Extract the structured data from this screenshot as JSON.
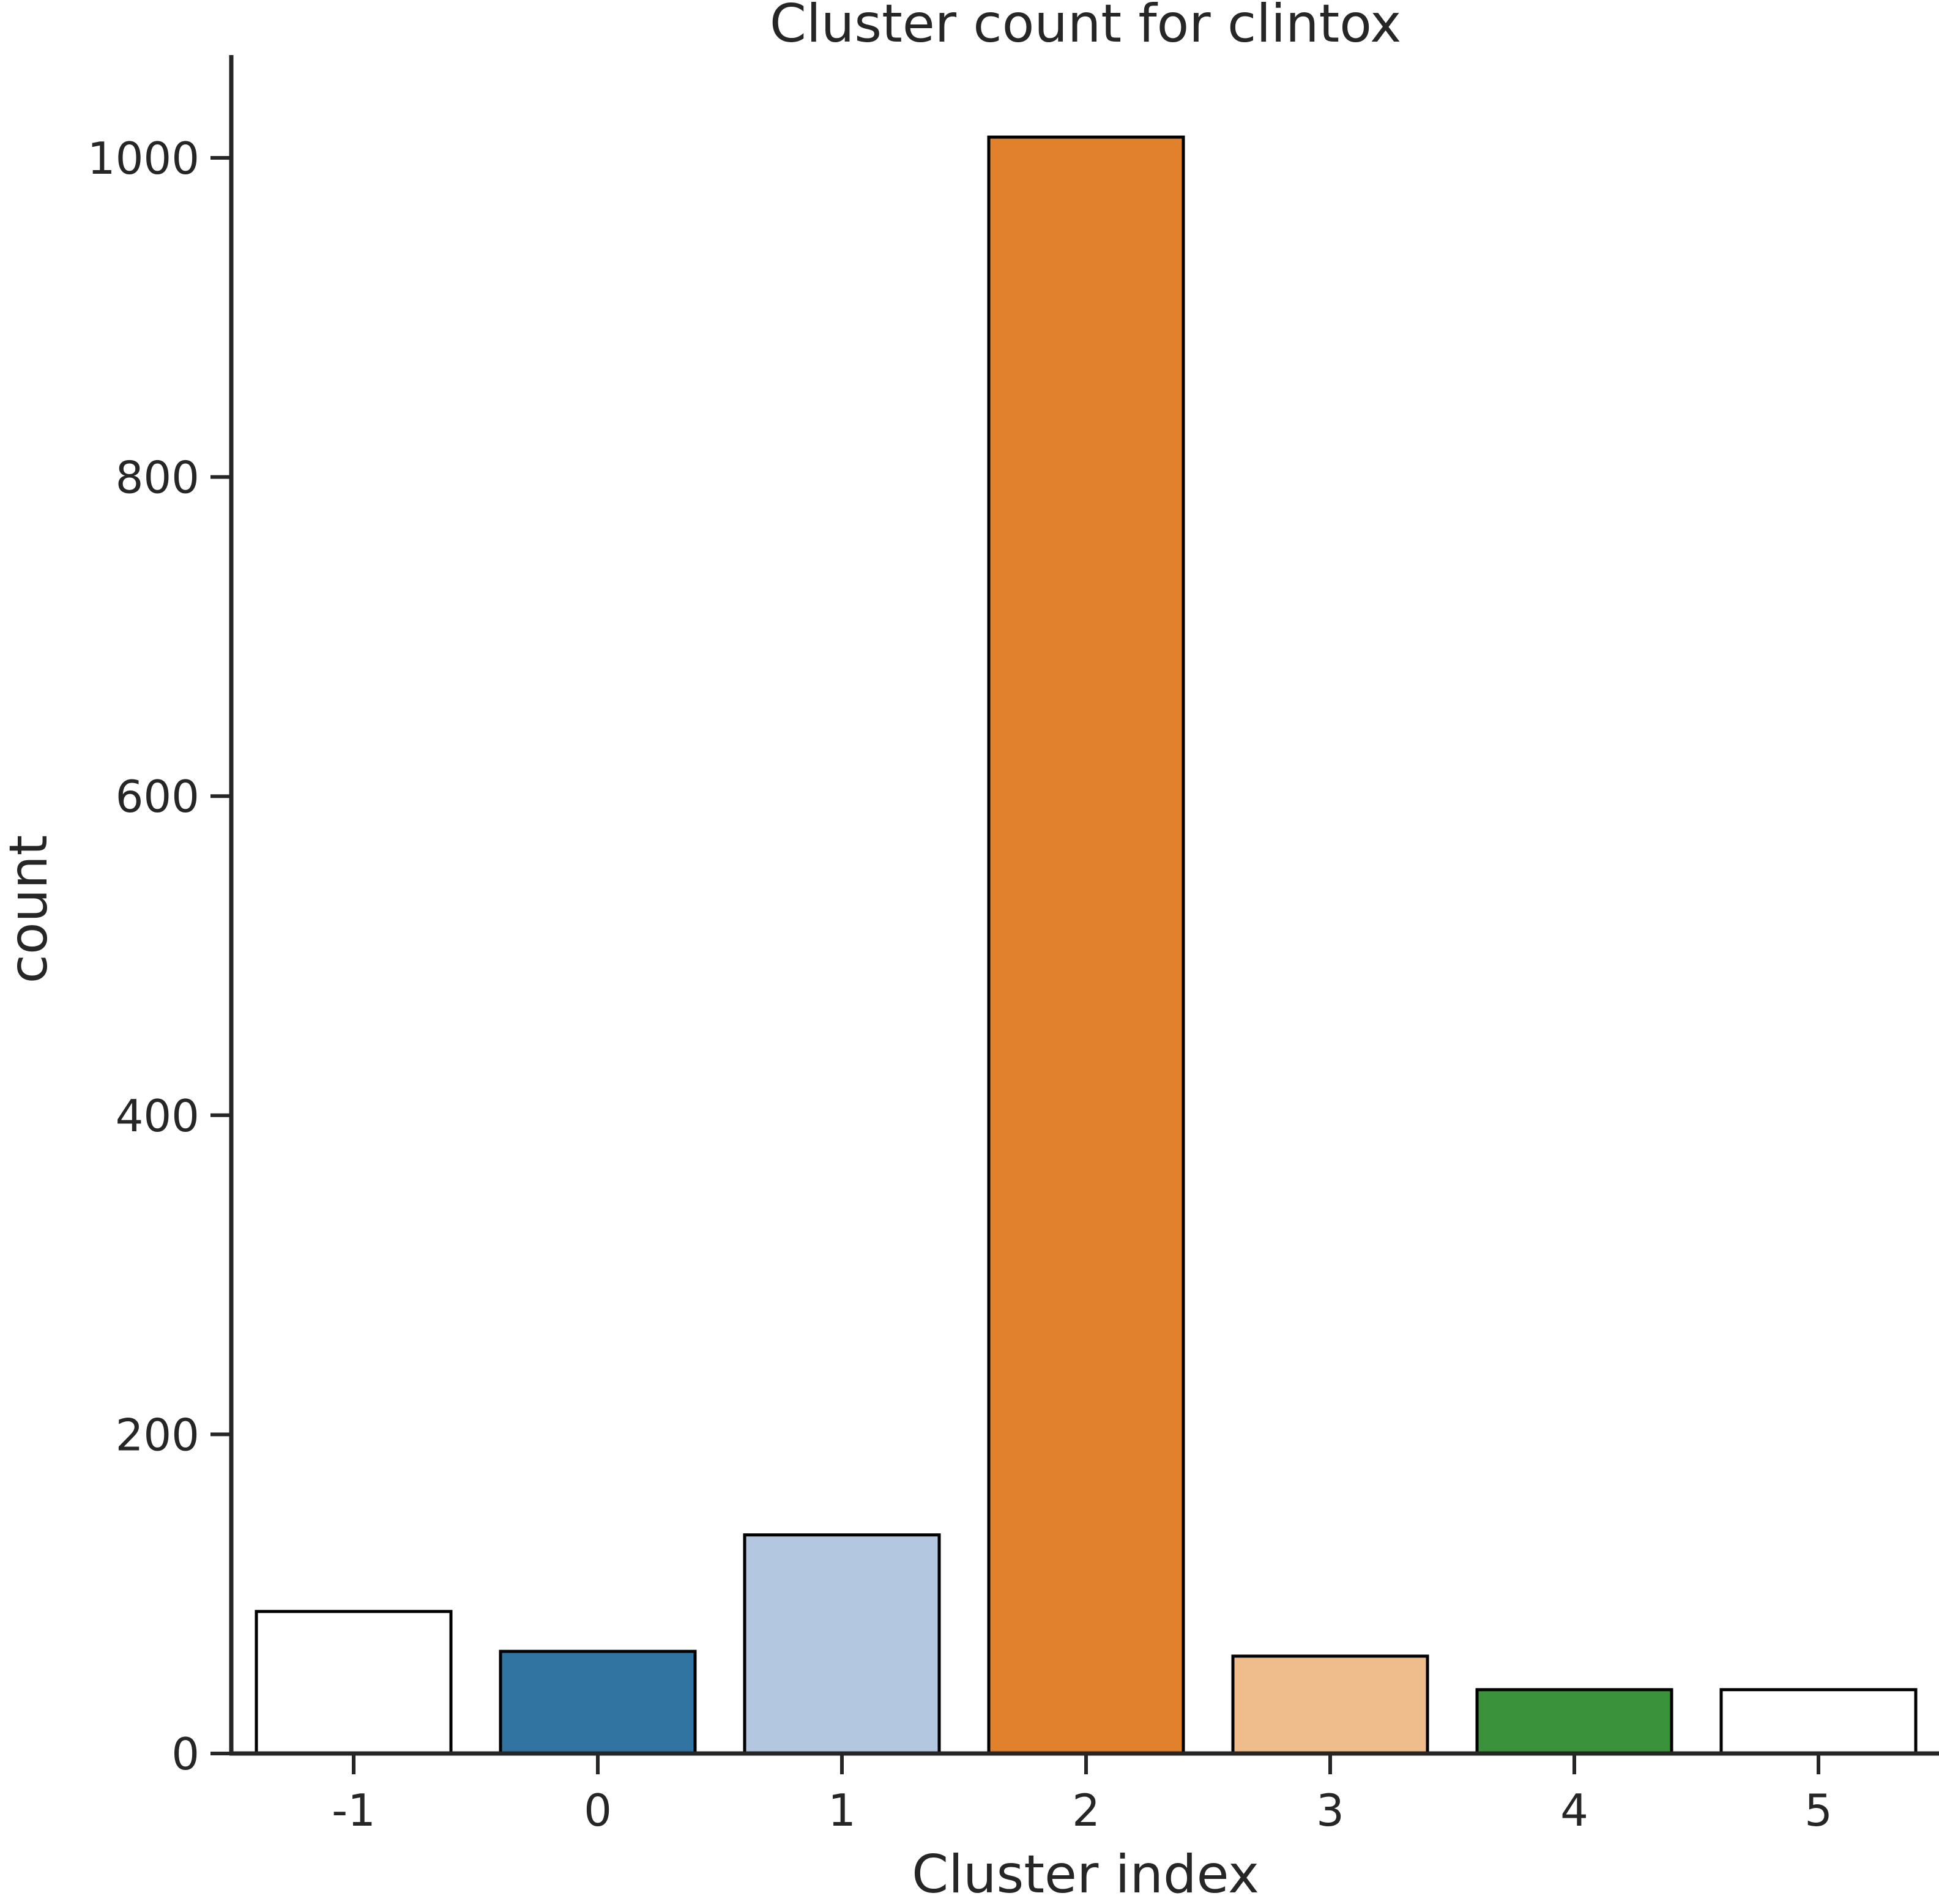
{
  "chart_data": {
    "type": "bar",
    "title": "Cluster count for clintox",
    "xlabel": "Cluster index",
    "ylabel": "count",
    "categories": [
      "-1",
      "0",
      "1",
      "2",
      "3",
      "4",
      "5"
    ],
    "values": [
      89,
      64,
      137,
      1013,
      61,
      40,
      40
    ],
    "colors": [
      "#ffffff",
      "#3274a1",
      "#b3c7e1",
      "#e1812c",
      "#efbc8b",
      "#3a923a",
      "#ffffff"
    ],
    "edge_color": "#000000",
    "ylim": [
      0,
      1060
    ],
    "yticks": [
      0,
      200,
      400,
      600,
      800,
      1000
    ],
    "grid": false,
    "legend": "none"
  }
}
